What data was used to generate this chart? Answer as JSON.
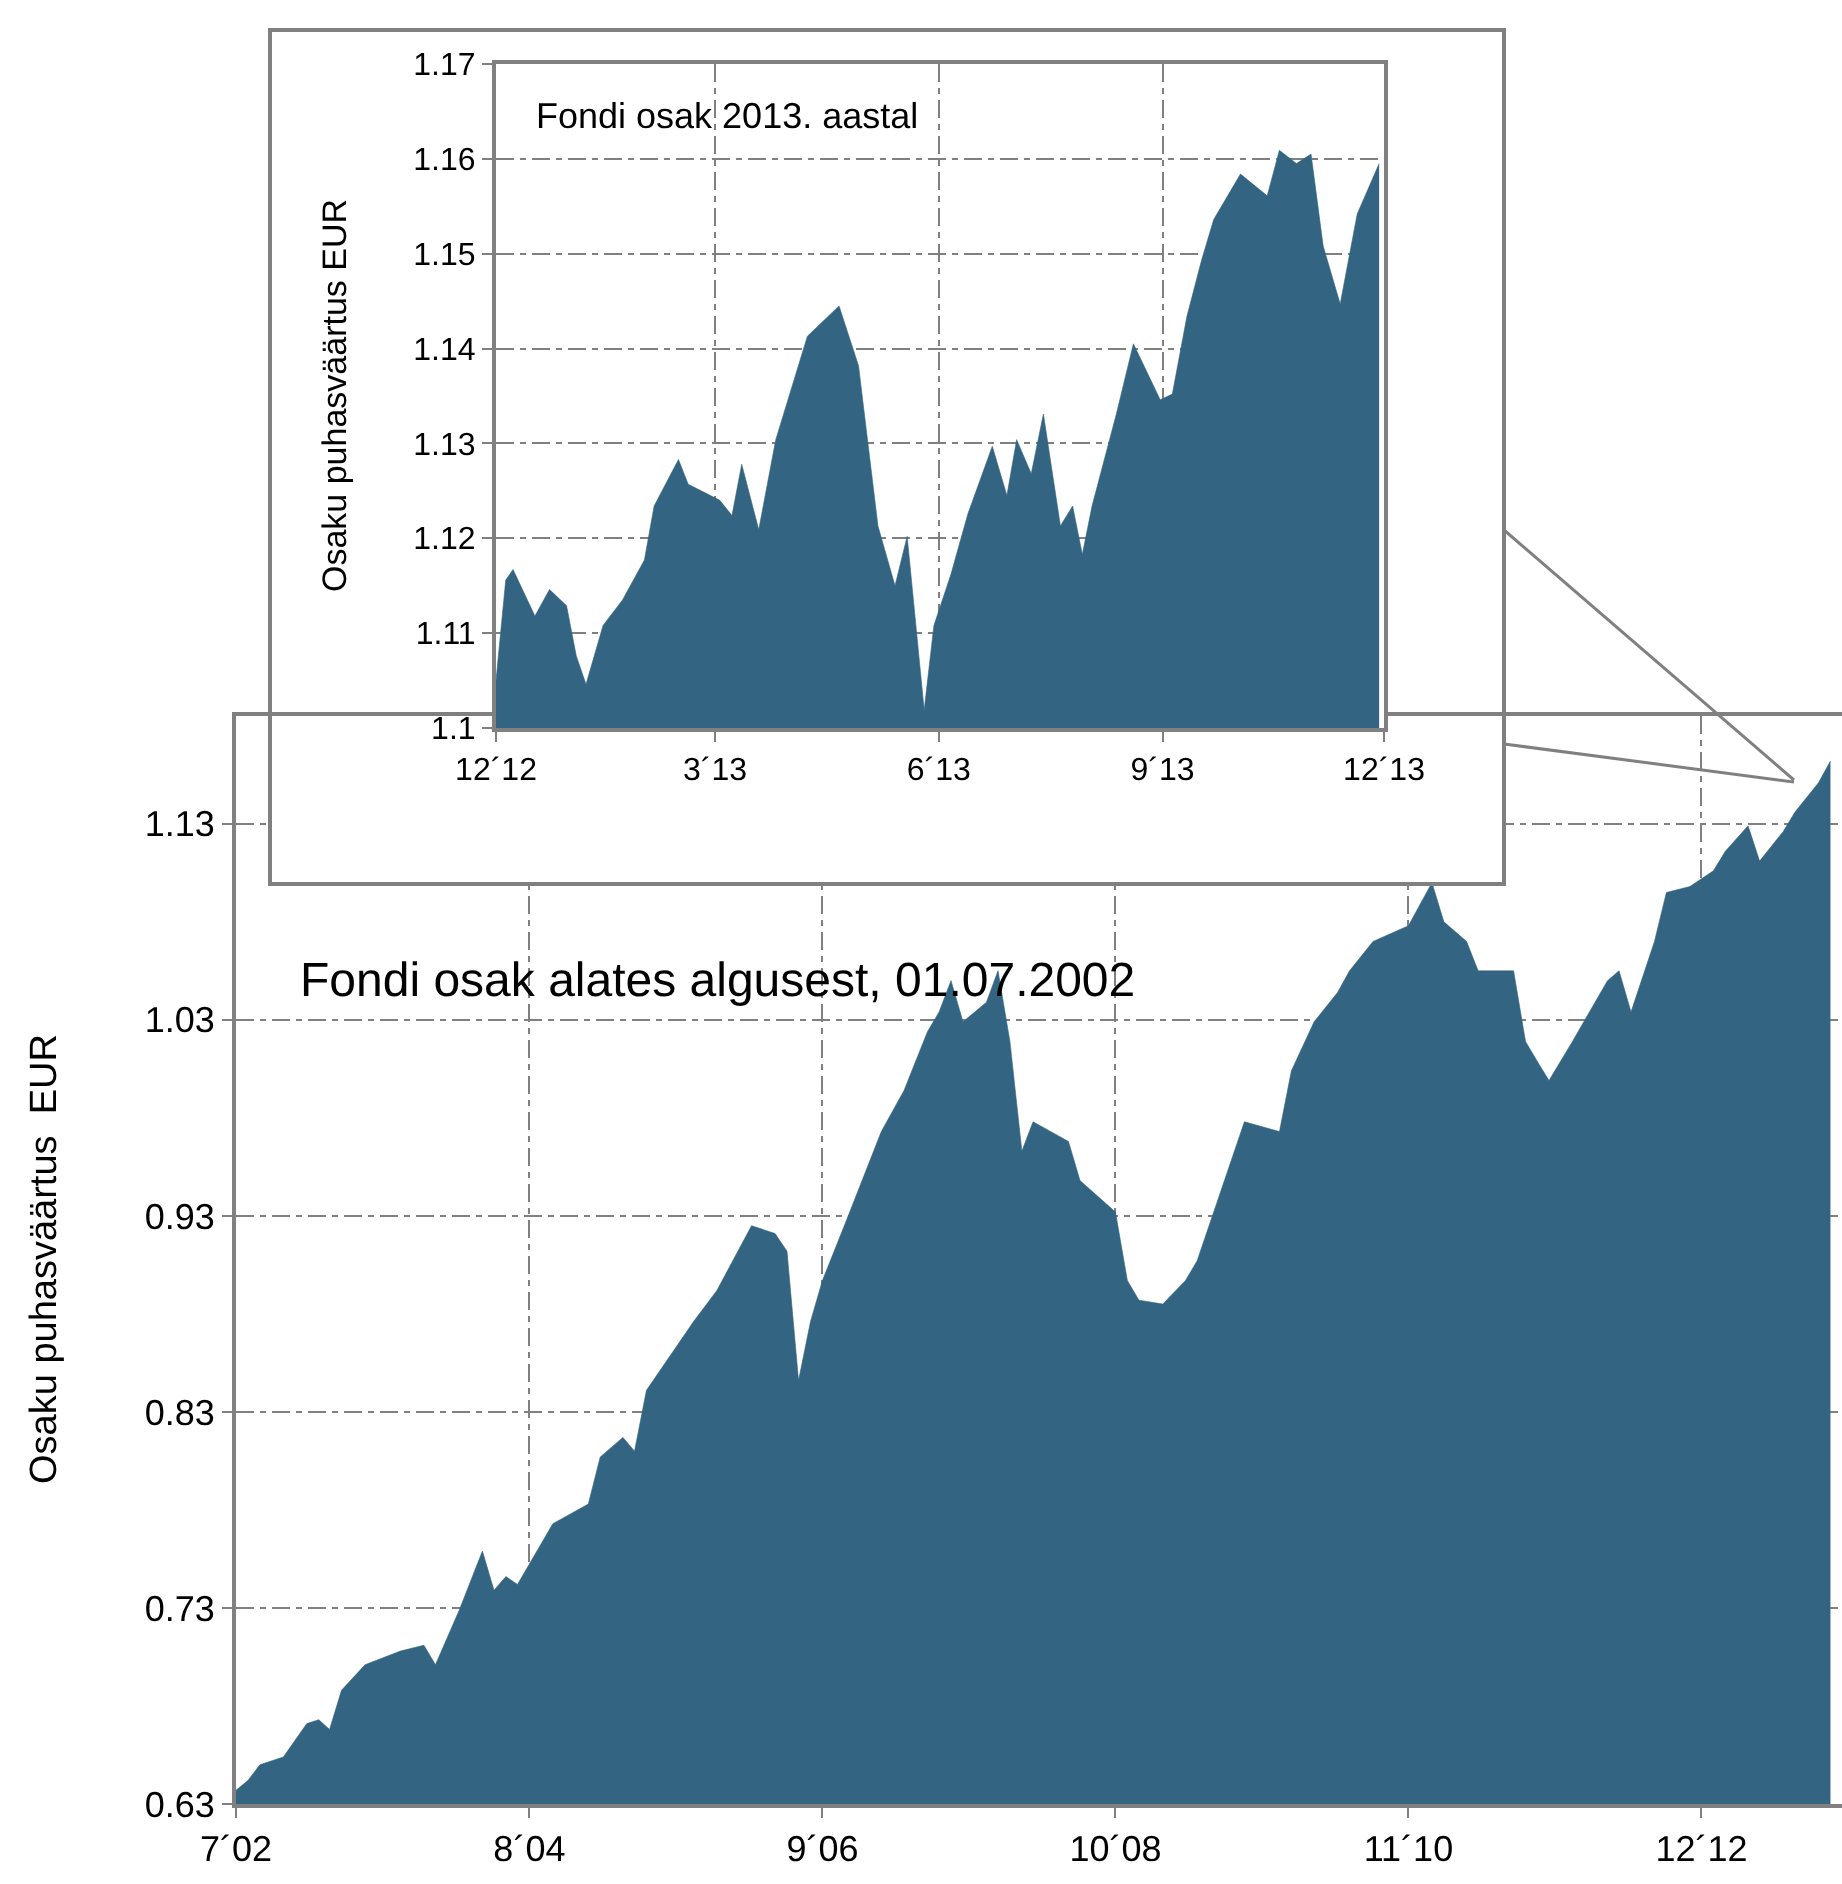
{
  "chart_data": [
    {
      "type": "area",
      "title": "Fondi osak alates algusest, 01.07.2002",
      "ylabel": "Osaku puhasväärtus  EUR",
      "color": "#336482",
      "grid": true,
      "x": [
        "2002-07",
        "2002-08",
        "2002-09",
        "2002-11",
        "2003-01",
        "2003-02",
        "2003-03",
        "2003-04",
        "2003-06",
        "2003-09",
        "2003-11",
        "2003-12",
        "2004-02",
        "2004-04",
        "2004-05",
        "2004-06",
        "2004-07",
        "2004-10",
        "2005-01",
        "2005-02",
        "2005-04",
        "2005-05",
        "2005-06",
        "2005-10",
        "2005-12",
        "2006-03",
        "2006-05",
        "2006-06",
        "2006-07",
        "2006-08",
        "2006-09",
        "2006-11",
        "2007-02",
        "2007-04",
        "2007-06",
        "2007-07",
        "2007-08",
        "2007-09",
        "2007-11",
        "2007-12",
        "2008-01",
        "2008-02",
        "2008-03",
        "2008-06",
        "2008-07",
        "2008-10",
        "2008-11",
        "2008-12",
        "2009-02",
        "2009-04",
        "2009-05",
        "2009-09",
        "2009-12",
        "2010-01",
        "2010-03",
        "2010-05",
        "2010-06",
        "2010-08",
        "2010-11",
        "2011-01",
        "2011-02",
        "2011-04",
        "2011-05",
        "2011-08",
        "2011-09",
        "2011-10",
        "2011-11",
        "2012-01",
        "2012-04",
        "2012-05",
        "2012-06",
        "2012-08",
        "2012-09",
        "2012-11",
        "2013-01",
        "2013-02",
        "2013-04",
        "2013-05",
        "2013-07",
        "2013-08",
        "2013-10",
        "2013-11"
      ],
      "values": [
        0.637,
        0.642,
        0.65,
        0.654,
        0.671,
        0.673,
        0.668,
        0.688,
        0.701,
        0.708,
        0.711,
        0.701,
        0.729,
        0.759,
        0.739,
        0.746,
        0.742,
        0.773,
        0.783,
        0.807,
        0.817,
        0.81,
        0.841,
        0.876,
        0.892,
        0.925,
        0.921,
        0.912,
        0.846,
        0.876,
        0.897,
        0.927,
        0.973,
        0.994,
        1.024,
        1.034,
        1.05,
        1.029,
        1.039,
        1.055,
        1.019,
        0.963,
        0.978,
        0.968,
        0.948,
        0.932,
        0.897,
        0.887,
        0.885,
        0.897,
        0.907,
        0.978,
        0.973,
        1.004,
        1.029,
        1.044,
        1.055,
        1.07,
        1.078,
        1.1,
        1.08,
        1.07,
        1.055,
        1.055,
        1.019,
        1.009,
        0.999,
        1.019,
        1.05,
        1.055,
        1.034,
        1.07,
        1.095,
        1.098,
        1.106,
        1.116,
        1.129,
        1.111,
        1.126,
        1.136,
        1.151,
        1.162
      ],
      "xlim": [
        "2002-07-01",
        "2013-12-01"
      ],
      "ylim": [
        0.63,
        1.185
      ],
      "xticks": [
        {
          "value": "2002-07-01",
          "label": "7´02"
        },
        {
          "value": "2004-08-01",
          "label": "8´04"
        },
        {
          "value": "2006-09-01",
          "label": "9´06"
        },
        {
          "value": "2008-10-01",
          "label": "10´08"
        },
        {
          "value": "2010-11-01",
          "label": "11´10"
        },
        {
          "value": "2012-12-01",
          "label": "12´12"
        }
      ],
      "yticks": [
        0.63,
        0.73,
        0.83,
        0.93,
        1.03,
        1.13
      ]
    },
    {
      "type": "area",
      "title": "Fondi osak 2013. aastal",
      "ylabel": "Osaku puhasväärtus EUR",
      "color": "#336482",
      "grid": true,
      "x": [
        "2012-12-01",
        "2012-12-05",
        "2012-12-08",
        "2012-12-17",
        "2012-12-23",
        "2012-12-30",
        "2013-01-03",
        "2013-01-07",
        "2013-01-14",
        "2013-01-22",
        "2013-01-31",
        "2013-02-04",
        "2013-02-14",
        "2013-02-18",
        "2013-03-03",
        "2013-03-08",
        "2013-03-12",
        "2013-03-19",
        "2013-03-26",
        "2013-04-08",
        "2013-04-21",
        "2013-04-29",
        "2013-05-07",
        "2013-05-14",
        "2013-05-19",
        "2013-05-26",
        "2013-05-30",
        "2013-06-06",
        "2013-06-13",
        "2013-06-23",
        "2013-06-29",
        "2013-07-03",
        "2013-07-09",
        "2013-07-14",
        "2013-07-21",
        "2013-07-26",
        "2013-07-30",
        "2013-08-03",
        "2013-08-13",
        "2013-08-20",
        "2013-08-31",
        "2013-09-05",
        "2013-09-11",
        "2013-09-17",
        "2013-09-22",
        "2013-10-03",
        "2013-10-14",
        "2013-10-19",
        "2013-10-26",
        "2013-11-01",
        "2013-11-06",
        "2013-11-13",
        "2013-11-20",
        "2013-11-29"
      ],
      "values": [
        1.105,
        1.1156,
        1.1167,
        1.1118,
        1.1146,
        1.1129,
        1.1076,
        1.1046,
        1.1108,
        1.1135,
        1.1177,
        1.1234,
        1.1283,
        1.1257,
        1.124,
        1.1224,
        1.1278,
        1.1209,
        1.1304,
        1.1413,
        1.1445,
        1.1382,
        1.1213,
        1.115,
        1.1202,
        1.1019,
        1.1108,
        1.1162,
        1.1226,
        1.1297,
        1.1245,
        1.1304,
        1.1268,
        1.1331,
        1.1213,
        1.1234,
        1.1183,
        1.1234,
        1.1331,
        1.1405,
        1.1346,
        1.1352,
        1.1434,
        1.1493,
        1.1536,
        1.1584,
        1.1561,
        1.1609,
        1.1595,
        1.1605,
        1.1508,
        1.1447,
        1.1542,
        1.1595
      ],
      "xlim": [
        "2012-12-01",
        "2013-12-01"
      ],
      "ylim": [
        1.1,
        1.17
      ],
      "xticks": [
        {
          "value": "2012-12-01",
          "label": "12´12"
        },
        {
          "value": "2013-03-01",
          "label": "3´13"
        },
        {
          "value": "2013-06-01",
          "label": "6´13"
        },
        {
          "value": "2013-09-01",
          "label": "9´13"
        },
        {
          "value": "2013-12-01",
          "label": "12´13"
        }
      ],
      "yticks": [
        1.1,
        1.11,
        1.12,
        1.13,
        1.14,
        1.15,
        1.16,
        1.17
      ]
    }
  ]
}
